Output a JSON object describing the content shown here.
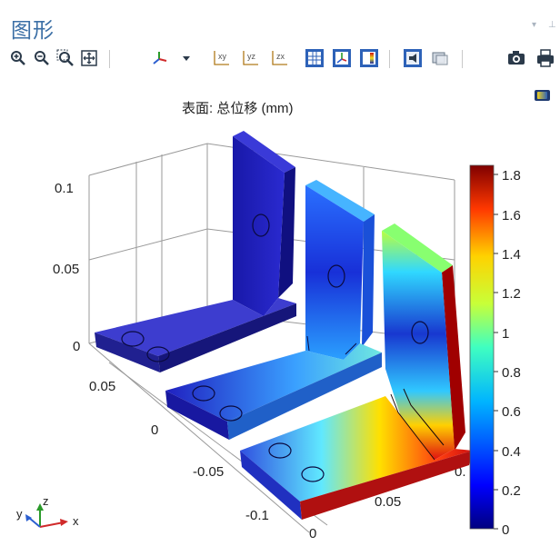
{
  "window": {
    "title": "图形"
  },
  "toolbar": {
    "buttons": [
      {
        "name": "zoom-in",
        "icon": "zoom-in-icon"
      },
      {
        "name": "zoom-out",
        "icon": "zoom-out-icon"
      },
      {
        "name": "zoom-box",
        "icon": "zoom-box-icon"
      },
      {
        "name": "zoom-extents",
        "icon": "zoom-extents-icon"
      },
      {
        "name": "go-to-default-view",
        "icon": "axes-view-icon"
      },
      {
        "name": "view-dropdown",
        "icon": "chevron-down-icon"
      },
      {
        "name": "view-xy",
        "label": "xy"
      },
      {
        "name": "view-yz",
        "label": "yz"
      },
      {
        "name": "view-zx",
        "label": "zx"
      },
      {
        "name": "show-grid",
        "icon": "grid-icon"
      },
      {
        "name": "show-axis",
        "icon": "axis-orientation-icon"
      },
      {
        "name": "show-legends",
        "icon": "legend-icon"
      },
      {
        "name": "scene-light",
        "icon": "light-icon"
      },
      {
        "name": "transparency",
        "icon": "transparency-icon"
      },
      {
        "name": "image-snapshot",
        "icon": "camera-icon"
      },
      {
        "name": "print",
        "icon": "print-icon"
      }
    ]
  },
  "plot": {
    "title": "表面: 总位移 (mm)",
    "z_axis_ticks": [
      "0.1",
      "0.05",
      "0"
    ],
    "x_axis_ticks": [
      "0.05",
      "0",
      "-0.05",
      "-0.1"
    ],
    "y_axis_ticks": [
      "0",
      "0.05",
      "0."
    ],
    "colorbar": {
      "ticks": [
        "1.8",
        "1.6",
        "1.4",
        "1.2",
        "1",
        "0.8",
        "0.6",
        "0.4",
        "0.2",
        "0"
      ],
      "max": 1.85,
      "min": 0
    },
    "triad": {
      "x_label": "x",
      "y_label": "y",
      "z_label": "z"
    }
  },
  "colors": {
    "title": "#3b6fa6",
    "accent_blue": "#2d62b8"
  }
}
